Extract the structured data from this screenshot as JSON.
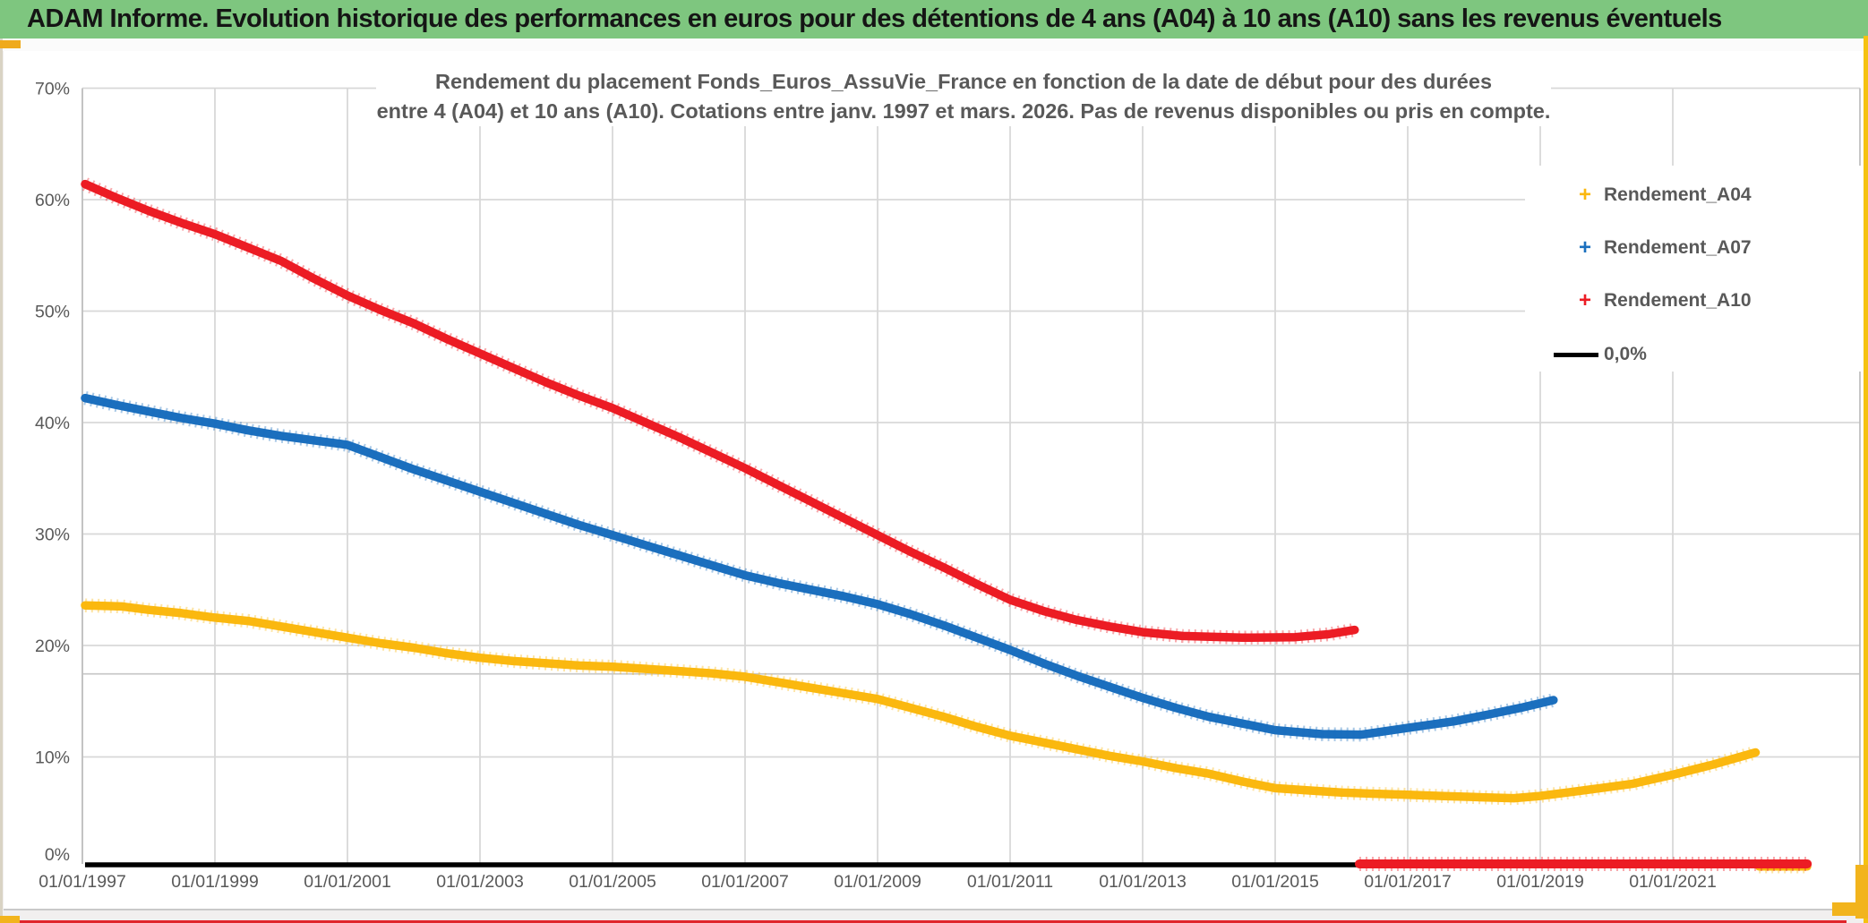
{
  "header": {
    "title": "ADAM Informe. Evolution historique des performances en euros pour des détentions de 4 ans (A04) à 10 ans (A10) sans les revenus éventuels"
  },
  "chart_data": {
    "type": "line",
    "title_line1": "Rendement du placement Fonds_Euros_AssuVie_France en fonction de la date de début pour des durées",
    "title_line2": "entre 4 (A04) et 10 ans (A10). Cotations entre janv. 1997 et mars. 2026. Pas de revenus disponibles ou pris en compte.",
    "x_axis": {
      "tick_years": [
        1997,
        1999,
        2001,
        2003,
        2005,
        2007,
        2009,
        2011,
        2013,
        2015,
        2017,
        2019,
        2021
      ],
      "labels": [
        "01/01/1997",
        "01/01/1999",
        "01/01/2001",
        "01/01/2003",
        "01/01/2005",
        "01/01/2007",
        "01/01/2009",
        "01/01/2011",
        "01/01/2013",
        "01/01/2015",
        "01/01/2017",
        "01/01/2019",
        "01/01/2021"
      ],
      "domain_years": [
        1997.0,
        2023.85
      ]
    },
    "y_axis": {
      "tick_values": [
        0,
        10,
        20,
        30,
        40,
        50,
        60,
        70
      ],
      "labels": [
        "0%",
        "10%",
        "20%",
        "30%",
        "40%",
        "50%",
        "60%",
        "70%"
      ],
      "domain_pct": [
        0,
        70
      ]
    },
    "legend": {
      "position": "right",
      "items": [
        {
          "label": "Rendement_A04",
          "marker": "plus",
          "color": "#FBB80F"
        },
        {
          "label": "Rendement_A07",
          "marker": "plus",
          "color": "#1B6FBE"
        },
        {
          "label": "Rendement_A10",
          "marker": "plus",
          "color": "#EC1C24"
        },
        {
          "label": "0,0%",
          "marker": "line",
          "color": "#000000"
        }
      ]
    },
    "series": [
      {
        "name": "Rendement_A04",
        "color": "#FBB80F",
        "points": [
          [
            1997.04,
            23.6
          ],
          [
            1997.6,
            23.5
          ],
          [
            1998,
            23.2
          ],
          [
            1998.5,
            22.9
          ],
          [
            1999,
            22.5
          ],
          [
            1999.5,
            22.2
          ],
          [
            2000,
            21.7
          ],
          [
            2000.5,
            21.2
          ],
          [
            2001,
            20.7
          ],
          [
            2001.5,
            20.2
          ],
          [
            2002,
            19.8
          ],
          [
            2002.5,
            19.3
          ],
          [
            2003,
            18.9
          ],
          [
            2003.5,
            18.6
          ],
          [
            2004,
            18.4
          ],
          [
            2004.5,
            18.2
          ],
          [
            2005,
            18.1
          ],
          [
            2005.5,
            17.9
          ],
          [
            2006,
            17.7
          ],
          [
            2006.5,
            17.5
          ],
          [
            2007,
            17.2
          ],
          [
            2007.5,
            16.7
          ],
          [
            2008,
            16.2
          ],
          [
            2008.5,
            15.7
          ],
          [
            2009,
            15.2
          ],
          [
            2009.5,
            14.4
          ],
          [
            2010,
            13.6
          ],
          [
            2010.5,
            12.7
          ],
          [
            2011,
            11.9
          ],
          [
            2011.5,
            11.3
          ],
          [
            2012,
            10.7
          ],
          [
            2012.5,
            10.1
          ],
          [
            2013,
            9.6
          ],
          [
            2013.5,
            9.0
          ],
          [
            2014,
            8.5
          ],
          [
            2014.5,
            7.8
          ],
          [
            2015,
            7.2
          ],
          [
            2015.5,
            7.0
          ],
          [
            2016,
            6.8
          ],
          [
            2016.5,
            6.7
          ],
          [
            2017,
            6.6
          ],
          [
            2017.5,
            6.5
          ],
          [
            2018,
            6.4
          ],
          [
            2018.6,
            6.3
          ],
          [
            2019,
            6.5
          ],
          [
            2019.4,
            6.8
          ],
          [
            2019.9,
            7.2
          ],
          [
            2020.4,
            7.6
          ],
          [
            2021,
            8.4
          ],
          [
            2021.6,
            9.3
          ],
          [
            2022.25,
            10.4
          ]
        ],
        "zero_segment_years": [
          2022.3,
          2023.03
        ]
      },
      {
        "name": "Rendement_A07",
        "color": "#1B6FBE",
        "points": [
          [
            1997.04,
            42.2
          ],
          [
            1997.5,
            41.6
          ],
          [
            1998,
            41.0
          ],
          [
            1998.5,
            40.4
          ],
          [
            1999,
            39.9
          ],
          [
            1999.5,
            39.3
          ],
          [
            2000,
            38.8
          ],
          [
            2000.5,
            38.4
          ],
          [
            2001,
            38.0
          ],
          [
            2001.5,
            36.9
          ],
          [
            2002,
            35.8
          ],
          [
            2002.5,
            34.8
          ],
          [
            2003,
            33.8
          ],
          [
            2003.5,
            32.8
          ],
          [
            2004,
            31.8
          ],
          [
            2004.5,
            30.8
          ],
          [
            2005,
            29.9
          ],
          [
            2005.5,
            29.0
          ],
          [
            2006,
            28.1
          ],
          [
            2006.5,
            27.2
          ],
          [
            2007,
            26.3
          ],
          [
            2007.5,
            25.6
          ],
          [
            2008,
            25.0
          ],
          [
            2008.5,
            24.4
          ],
          [
            2009,
            23.7
          ],
          [
            2009.5,
            22.8
          ],
          [
            2010,
            21.8
          ],
          [
            2010.5,
            20.7
          ],
          [
            2011,
            19.6
          ],
          [
            2011.5,
            18.4
          ],
          [
            2012,
            17.3
          ],
          [
            2012.5,
            16.3
          ],
          [
            2013,
            15.3
          ],
          [
            2013.5,
            14.4
          ],
          [
            2014,
            13.6
          ],
          [
            2014.5,
            13.0
          ],
          [
            2015,
            12.4
          ],
          [
            2015.7,
            12.05
          ],
          [
            2016.3,
            12.0
          ],
          [
            2017,
            12.6
          ],
          [
            2017.7,
            13.2
          ],
          [
            2018.3,
            13.9
          ],
          [
            2018.7,
            14.4
          ],
          [
            2019.2,
            15.1
          ]
        ],
        "zero_segment_years": null
      },
      {
        "name": "Rendement_A10",
        "color": "#EC1C24",
        "points": [
          [
            1997.04,
            61.4
          ],
          [
            1997.5,
            60.2
          ],
          [
            1998,
            59.0
          ],
          [
            1998.5,
            57.9
          ],
          [
            1999,
            56.9
          ],
          [
            1999.5,
            55.7
          ],
          [
            2000,
            54.5
          ],
          [
            2000.5,
            52.9
          ],
          [
            2001,
            51.4
          ],
          [
            2001.5,
            50.1
          ],
          [
            2002,
            48.9
          ],
          [
            2002.5,
            47.5
          ],
          [
            2003,
            46.2
          ],
          [
            2003.5,
            44.9
          ],
          [
            2004,
            43.6
          ],
          [
            2004.5,
            42.4
          ],
          [
            2005,
            41.3
          ],
          [
            2005.5,
            40.0
          ],
          [
            2006,
            38.7
          ],
          [
            2006.5,
            37.3
          ],
          [
            2007,
            35.9
          ],
          [
            2007.5,
            34.4
          ],
          [
            2008,
            32.9
          ],
          [
            2008.5,
            31.4
          ],
          [
            2009,
            29.9
          ],
          [
            2009.5,
            28.4
          ],
          [
            2010,
            27.0
          ],
          [
            2010.5,
            25.5
          ],
          [
            2011,
            24.1
          ],
          [
            2011.5,
            23.1
          ],
          [
            2012,
            22.3
          ],
          [
            2012.5,
            21.7
          ],
          [
            2013,
            21.2
          ],
          [
            2013.6,
            20.85
          ],
          [
            2014.5,
            20.7
          ],
          [
            2015.3,
            20.75
          ],
          [
            2015.8,
            21.0
          ],
          [
            2016.2,
            21.4
          ]
        ],
        "zero_segment_years": [
          2016.27,
          2023.03
        ]
      }
    ],
    "zero_line": {
      "label": "0,0%",
      "color": "#000000",
      "value_pct": 0,
      "span_years": [
        1997.04,
        2023.03
      ]
    },
    "gridlines": true,
    "extra_gridline_pct": 17.45
  },
  "colors": {
    "header_bg": "#7EC67F",
    "chart_text": "#595959",
    "grid": "#D8D8D8",
    "border": "#C0C0C0",
    "page_bg": "#F1EFEF",
    "accent_yellow": "#F2B41D",
    "bottom_red": "#E0262B"
  }
}
